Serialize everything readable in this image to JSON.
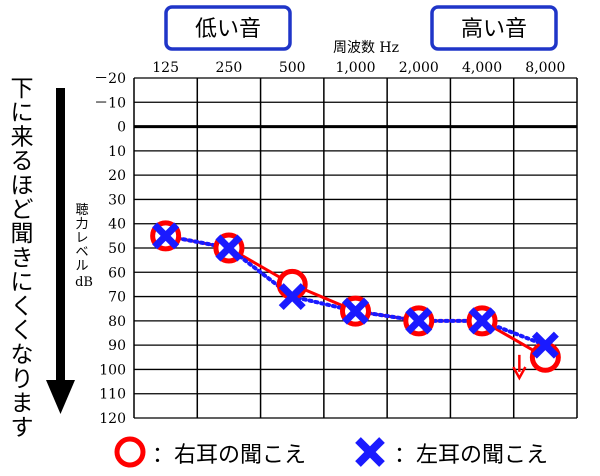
{
  "chart_data": {
    "type": "line",
    "title": "",
    "xlabel": "周波数 Hz",
    "ylabel": "聴力レベル dB",
    "categories": [
      "125",
      "250",
      "500",
      "1,000",
      "2,000",
      "4,000",
      "8,000"
    ],
    "yticks": [
      -20,
      -10,
      0,
      10,
      20,
      30,
      40,
      50,
      60,
      70,
      80,
      90,
      100,
      110,
      120
    ],
    "ytick_labels": [
      "－20",
      "－10",
      "0",
      "10",
      "20",
      "30",
      "40",
      "50",
      "60",
      "70",
      "80",
      "90",
      "100",
      "110",
      "120"
    ],
    "ylim": [
      -20,
      120
    ],
    "y_inverted": true,
    "reference_line": 0,
    "grid": true,
    "series": [
      {
        "name": "右耳の聞こえ",
        "marker": "circle",
        "color": "#ff0000",
        "line": "solid",
        "values": [
          45,
          50,
          65,
          76,
          80,
          80,
          95
        ]
      },
      {
        "name": "左耳の聞こえ",
        "marker": "cross",
        "color": "#1a1aff",
        "line": "dotted",
        "values": [
          45,
          50,
          70,
          76,
          80,
          80,
          90
        ]
      }
    ],
    "annotations": {
      "low_pitch_label": "低い音",
      "high_pitch_label": "高い音",
      "side_note": "下に来るほど聞きにくくなります",
      "scale_out_arrow_color": "#ff0000"
    },
    "legend_placement": "bottom"
  }
}
